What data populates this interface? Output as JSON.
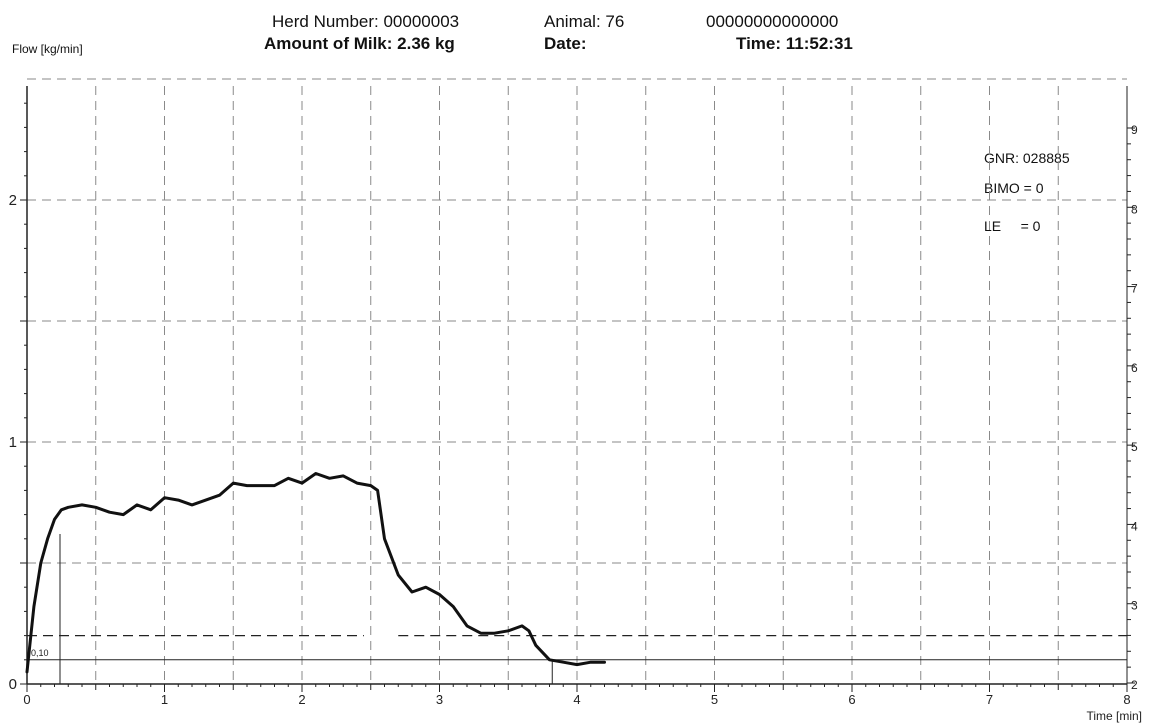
{
  "header": {
    "herd_label": "Herd Number: 00000003",
    "animal_label": "Animal: 76",
    "id_code": "00000000000000",
    "milk_label": "Amount of Milk: 2.36 kg",
    "date_label": "Date:",
    "time_label": "Time: 11:52:31"
  },
  "info": {
    "gnr": "GNR: 028885",
    "bimo": "BIMO = 0",
    "le": "LE     = 0"
  },
  "colors": {
    "line": "#111111",
    "grid": "#8a8a8a",
    "axis": "#222222"
  },
  "chart_data": {
    "type": "line",
    "ylabel": "Flow [kg/min]",
    "xlabel": "Time [min]",
    "xlim": [
      0,
      8
    ],
    "ylim": [
      0,
      2.5
    ],
    "x_ticks": [
      0,
      1,
      2,
      3,
      4,
      5,
      6,
      7,
      8
    ],
    "y_ticks": [
      0,
      1,
      2
    ],
    "y_tick_labels": [
      "0",
      "1",
      "2"
    ],
    "right_ticks": [
      "2",
      "3",
      "4",
      "5",
      "6",
      "7",
      "8",
      "9"
    ],
    "grid": true,
    "threshold_low": 0.1,
    "threshold_low_label": "0,10",
    "threshold_high": 0.2,
    "marker_lines": [
      {
        "x": 0.24,
        "y": 0.62
      },
      {
        "x": 3.82,
        "y": 0.1
      }
    ],
    "series": [
      {
        "x": [
          0.0,
          0.05,
          0.1,
          0.15,
          0.2,
          0.25,
          0.3,
          0.4,
          0.5,
          0.6,
          0.7,
          0.8,
          0.9,
          1.0,
          1.1,
          1.2,
          1.3,
          1.4,
          1.5,
          1.6,
          1.7,
          1.8,
          1.9,
          2.0,
          2.1,
          2.2,
          2.3,
          2.4,
          2.5,
          2.55,
          2.6,
          2.7,
          2.8,
          2.9,
          3.0,
          3.1,
          3.2,
          3.3,
          3.4,
          3.5,
          3.6,
          3.65,
          3.7,
          3.8,
          3.9,
          4.0,
          4.1,
          4.2
        ],
        "y": [
          0.05,
          0.32,
          0.5,
          0.6,
          0.68,
          0.72,
          0.73,
          0.74,
          0.73,
          0.71,
          0.7,
          0.74,
          0.72,
          0.77,
          0.76,
          0.74,
          0.76,
          0.78,
          0.83,
          0.82,
          0.82,
          0.82,
          0.85,
          0.83,
          0.87,
          0.85,
          0.86,
          0.83,
          0.82,
          0.8,
          0.6,
          0.45,
          0.38,
          0.4,
          0.37,
          0.32,
          0.24,
          0.21,
          0.21,
          0.22,
          0.24,
          0.22,
          0.16,
          0.1,
          0.09,
          0.08,
          0.09,
          0.09
        ]
      }
    ]
  }
}
